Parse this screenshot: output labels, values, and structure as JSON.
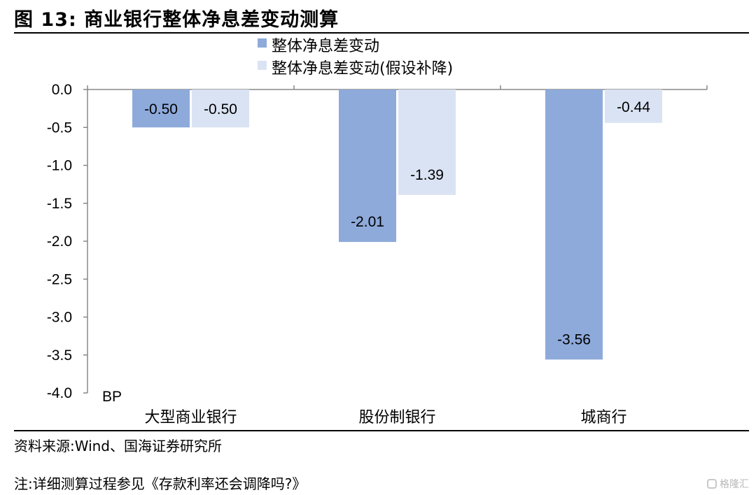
{
  "figure": {
    "title": "图 13:  商业银行整体净息差变动测算",
    "source": "资料来源:Wind、国海证券研究所",
    "note": "注:详细测算过程参见《存款利率还会调降吗?》",
    "watermark": "格隆汇"
  },
  "colors": {
    "series1": "#8eaadb",
    "series2": "#dae3f3"
  },
  "chart_data": {
    "type": "bar",
    "title": "商业银行整体净息差变动测算",
    "categories": [
      "大型商业银行",
      "股份制银行",
      "城商行"
    ],
    "series": [
      {
        "name": "整体净息差变动",
        "values": [
          -0.5,
          -2.01,
          -3.56
        ]
      },
      {
        "name": "整体净息差变动(假设补降)",
        "values": [
          -0.5,
          -1.39,
          -0.44
        ]
      }
    ],
    "ylim": [
      -4.0,
      0.0
    ],
    "yticks": [
      0.0,
      -0.5,
      -1.0,
      -1.5,
      -2.0,
      -2.5,
      -3.0,
      -3.5,
      -4.0
    ],
    "ytick_labels": [
      "0.0",
      "-0.5",
      "-1.0",
      "-1.5",
      "-2.0",
      "-2.5",
      "-3.0",
      "-3.5",
      "-4.0"
    ],
    "ylabel": "BP",
    "data_labels": [
      [
        "-0.50",
        "-2.01",
        "-3.56"
      ],
      [
        "-0.50",
        "-1.39",
        "-0.44"
      ]
    ],
    "legend_position": "top-left",
    "grid": false
  }
}
